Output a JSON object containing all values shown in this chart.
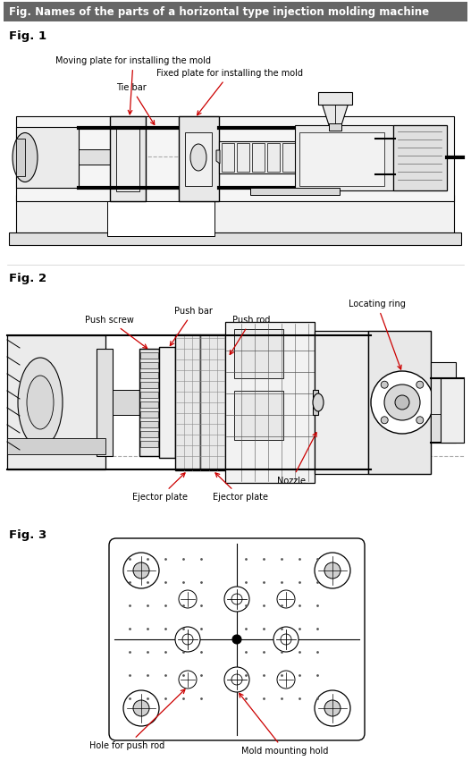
{
  "title": "Fig. Names of the parts of a horizontal type injection molding machine",
  "title_bg": "#666666",
  "title_color": "#ffffff",
  "title_fontsize": 8.5,
  "fig1_label": "Fig. 1",
  "fig2_label": "Fig. 2",
  "fig3_label": "Fig. 3",
  "annotation_color": "#cc0000",
  "label_fontsize": 7.0,
  "fig_label_fontsize": 9.5,
  "lc": "#333333",
  "lw": 0.7
}
